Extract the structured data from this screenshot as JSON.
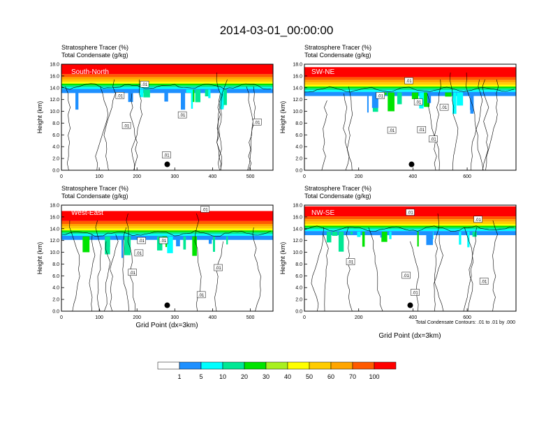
{
  "title": "2014-03-01_00:00:00",
  "colors": {
    "background": "#ffffff",
    "axis": "#000000",
    "contour": "#000000",
    "label_text": "#ffffff"
  },
  "chart_data": [
    {
      "type": "heatmap",
      "panel_label": "South-North",
      "subtitle_line1": "Stratosphere Tracer   (%)",
      "subtitle_line2": "Total Condensate   (g/kg)",
      "xlabel": "",
      "ylabel": "Height (km)",
      "xlim": [
        0,
        560
      ],
      "ylim": [
        0,
        18
      ],
      "xticks": [
        0,
        100,
        200,
        300,
        400,
        500
      ],
      "yticks": [
        0.0,
        2.0,
        4.0,
        6.0,
        8.0,
        10.0,
        12.0,
        14.0,
        16.0,
        18.0
      ],
      "tropopause_km": 14.5,
      "marker": {
        "x": 280,
        "y": 1.0
      },
      "contour_labels": [
        {
          "x": 220,
          "y": 14.6,
          "text": ".01"
        },
        {
          "x": 155,
          "y": 12.7,
          "text": ".01"
        },
        {
          "x": 172,
          "y": 7.6,
          "text": ".01"
        },
        {
          "x": 320,
          "y": 9.4,
          "text": ".01"
        },
        {
          "x": 518,
          "y": 8.2,
          "text": ".01"
        },
        {
          "x": 278,
          "y": 2.6,
          "text": ".01"
        }
      ]
    },
    {
      "type": "heatmap",
      "panel_label": "SW-NE",
      "subtitle_line1": "Stratosphere Tracer   (%)",
      "subtitle_line2": "Total Condensate   (g/kg)",
      "xlabel": "",
      "ylabel": "Height (km)",
      "xlim": [
        0,
        780
      ],
      "ylim": [
        0,
        18
      ],
      "xticks": [
        0,
        200,
        400,
        600
      ],
      "yticks": [
        0.0,
        2.0,
        4.0,
        6.0,
        8.0,
        10.0,
        12.0,
        14.0,
        16.0,
        18.0
      ],
      "tropopause_km": 14.0,
      "marker": {
        "x": 395,
        "y": 1.0
      },
      "contour_labels": [
        {
          "x": 280,
          "y": 12.7,
          "text": ".01"
        },
        {
          "x": 420,
          "y": 11.6,
          "text": ".01"
        },
        {
          "x": 385,
          "y": 15.2,
          "text": ".01"
        },
        {
          "x": 515,
          "y": 10.7,
          "text": ".01"
        },
        {
          "x": 322,
          "y": 6.8,
          "text": ".01"
        },
        {
          "x": 432,
          "y": 6.9,
          "text": ".01"
        },
        {
          "x": 475,
          "y": 5.3,
          "text": ".01"
        }
      ]
    },
    {
      "type": "heatmap",
      "panel_label": "West-East",
      "subtitle_line1": "Stratosphere Tracer   (%)",
      "subtitle_line2": "Total Condensate   (g/kg)",
      "xlabel": "Grid Point (dx=3km)",
      "ylabel": "Height (km)",
      "xlim": [
        0,
        560
      ],
      "ylim": [
        0,
        18
      ],
      "xticks": [
        0,
        100,
        200,
        300,
        400,
        500
      ],
      "yticks": [
        0.0,
        2.0,
        4.0,
        6.0,
        8.0,
        10.0,
        12.0,
        14.0,
        16.0,
        18.0
      ],
      "tropopause_km": 13.5,
      "marker": {
        "x": 280,
        "y": 1.0
      },
      "contour_labels": [
        {
          "x": 380,
          "y": 17.3,
          "text": ".01"
        },
        {
          "x": 212,
          "y": 12.0,
          "text": ".01"
        },
        {
          "x": 270,
          "y": 12.0,
          "text": ".01"
        },
        {
          "x": 205,
          "y": 9.9,
          "text": ".01"
        },
        {
          "x": 188,
          "y": 6.6,
          "text": ".01"
        },
        {
          "x": 415,
          "y": 7.4,
          "text": ".01"
        },
        {
          "x": 370,
          "y": 2.8,
          "text": ".01"
        }
      ]
    },
    {
      "type": "heatmap",
      "panel_label": "NW-SE",
      "subtitle_line1": "Stratosphere Tracer   (%)",
      "subtitle_line2": "Total Condensate   (g/kg)",
      "xlabel": "Grid Point (dx=3km)",
      "ylabel": "Height (km)",
      "xlim": [
        0,
        780
      ],
      "ylim": [
        0,
        18
      ],
      "xticks": [
        0,
        200,
        400,
        600
      ],
      "yticks": [
        0.0,
        2.0,
        4.0,
        6.0,
        8.0,
        10.0,
        12.0,
        14.0,
        16.0,
        18.0
      ],
      "tropopause_km": 14.3,
      "marker": {
        "x": 390,
        "y": 1.0
      },
      "contour_labels": [
        {
          "x": 390,
          "y": 16.8,
          "text": ".01"
        },
        {
          "x": 640,
          "y": 15.6,
          "text": ".01"
        },
        {
          "x": 170,
          "y": 8.4,
          "text": ".01"
        },
        {
          "x": 375,
          "y": 6.1,
          "text": ".01"
        },
        {
          "x": 408,
          "y": 3.2,
          "text": ".01"
        },
        {
          "x": 662,
          "y": 5.1,
          "text": ".01"
        }
      ]
    }
  ],
  "contour_note": "Total Condensate Contours: .01 to .01 by .000",
  "colorbar": {
    "labels": [
      "1",
      "5",
      "10",
      "20",
      "30",
      "40",
      "50",
      "60",
      "70",
      "100"
    ],
    "colors": [
      "#ffffff",
      "#1e90ff",
      "#00ffff",
      "#00e894",
      "#00e400",
      "#a8f020",
      "#ffff00",
      "#ffcc00",
      "#ffa500",
      "#ff5a00",
      "#ff0000"
    ]
  }
}
